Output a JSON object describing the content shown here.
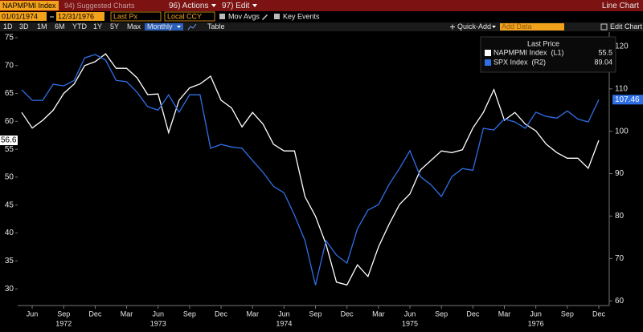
{
  "toolbar": {
    "security": "NAPMPMI Index",
    "suggested": "94) Suggested Charts",
    "actions": "96) Actions",
    "edit": "97) Edit",
    "view": "Line Chart"
  },
  "controls": {
    "start": "01/01/1974",
    "end": "12/31/1976",
    "field": "Last Px",
    "currency": "Local CCY",
    "mov_avgs": "Mov Avgs",
    "key_events": "Key Events"
  },
  "range_bar": {
    "periods": [
      "1D",
      "3D",
      "1M",
      "6M",
      "YTD",
      "1Y",
      "5Y",
      "Max"
    ],
    "frequency": "Monthly",
    "table": "Table",
    "quick_add": "Quick-Add",
    "add_data": "Add Data",
    "edit_chart": "Edit Chart"
  },
  "chart_data": {
    "type": "line",
    "categories": [
      null,
      "Jun",
      null,
      null,
      "Sep",
      null,
      null,
      "Dec",
      null,
      null,
      "Mar",
      null,
      null,
      "Jun",
      null,
      null,
      "Sep",
      null,
      null,
      "Dec",
      null,
      null,
      "Mar",
      null,
      null,
      "Jun",
      null,
      null,
      "Sep",
      null,
      null,
      "Dec",
      null,
      null,
      "Mar",
      null,
      null,
      "Jun",
      null,
      null,
      "Sep",
      null,
      null,
      "Dec",
      null,
      null,
      "Mar",
      null,
      null,
      "Jun",
      null,
      null,
      "Sep",
      null,
      null,
      "Dec"
    ],
    "category_years": [
      null,
      null,
      null,
      null,
      "1972",
      null,
      null,
      null,
      null,
      null,
      null,
      null,
      null,
      "1973",
      null,
      null,
      null,
      null,
      null,
      null,
      null,
      null,
      null,
      null,
      null,
      "1974",
      null,
      null,
      null,
      null,
      null,
      null,
      null,
      null,
      null,
      null,
      null,
      "1975",
      null,
      null,
      null,
      null,
      null,
      null,
      null,
      null,
      null,
      null,
      null,
      "1976",
      null,
      null,
      null,
      null,
      null,
      null
    ],
    "legend_title": "Last Price",
    "series": [
      {
        "name": "NAPMPMI Index  (L1)",
        "color": "#ffffff",
        "axis": "y",
        "legend_value": 55.5,
        "last_label": "56.6",
        "values": [
          61.6,
          58.8,
          60.2,
          62,
          65,
          66.7,
          70,
          70.7,
          72.1,
          69.5,
          69.5,
          67.8,
          64.8,
          64.9,
          58,
          63.8,
          66,
          66.7,
          68.1,
          63.8,
          62.4,
          59,
          61.6,
          59.5,
          55.9,
          54.7,
          54.7,
          46.5,
          43,
          38,
          31.2,
          30.7,
          34.3,
          32.2,
          37.5,
          41.5,
          45.1,
          47,
          51.3,
          53,
          54.7,
          54.4,
          54.9,
          58.8,
          61.6,
          65.7,
          60.2,
          61.6,
          59.5,
          58.3,
          55.9,
          54.4,
          53.4,
          53.4,
          51.6,
          56.6
        ]
      },
      {
        "name": "SPX Index  (R2)",
        "color": "#2f6fe6",
        "axis": "y2",
        "legend_value": 89.04,
        "last_label": "107.46",
        "values": [
          109.8,
          107.3,
          107.3,
          111.1,
          110.7,
          112,
          117.3,
          118.1,
          116.8,
          112,
          111.7,
          109.2,
          105.8,
          105,
          108.6,
          104.5,
          108.6,
          108.6,
          96,
          96.9,
          96.3,
          96,
          93.1,
          90.3,
          87,
          85.5,
          80.2,
          74.2,
          63.7,
          74.2,
          70.8,
          68.9,
          77,
          81.4,
          82.7,
          87.4,
          91.2,
          95.4,
          89.3,
          87.4,
          84.6,
          89.3,
          91.2,
          90.8,
          100.7,
          100.3,
          102.9,
          102.2,
          100.7,
          104.5,
          103.5,
          103.1,
          104.8,
          102.9,
          102.2,
          107.46
        ]
      }
    ],
    "ylim": [
      27,
      76
    ],
    "yticks": [
      30,
      35,
      40,
      45,
      50,
      55,
      60,
      65,
      70,
      75
    ],
    "y2lim": [
      58.9,
      123.4
    ],
    "y2ticks": [
      60,
      70,
      80,
      90,
      100,
      110,
      120
    ],
    "grid": false,
    "legend": "upper right"
  }
}
